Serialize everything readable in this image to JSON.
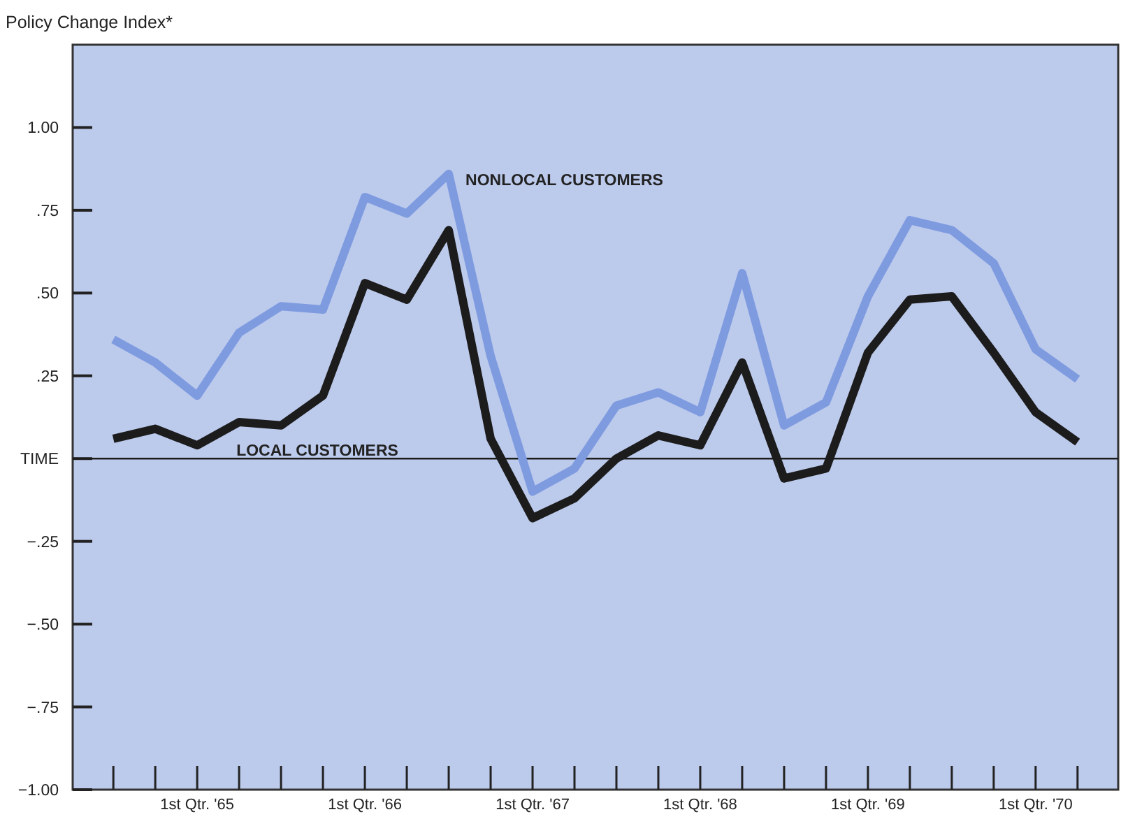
{
  "chart_data": {
    "type": "line",
    "ylabel": "Policy Change Index*",
    "categories": [
      null,
      null,
      "1st Qtr. '65",
      null,
      null,
      null,
      "1st Qtr. '66",
      null,
      null,
      null,
      "1st Qtr. '67",
      null,
      null,
      null,
      "1st Qtr. '68",
      null,
      null,
      null,
      "1st Qtr. '69",
      null,
      null,
      null,
      "1st Qtr. '70",
      null
    ],
    "series": [
      {
        "name": "NONLOCAL CUSTOMERS",
        "color": "#7f9be0",
        "values": [
          0.36,
          0.29,
          0.19,
          0.38,
          0.46,
          0.45,
          0.79,
          0.74,
          0.86,
          0.31,
          -0.1,
          -0.03,
          0.16,
          0.2,
          0.14,
          0.56,
          0.1,
          0.17,
          0.49,
          0.72,
          0.69,
          0.59,
          0.33,
          0.24
        ]
      },
      {
        "name": "LOCAL CUSTOMERS",
        "color": "#1c1c1c",
        "values": [
          0.06,
          0.09,
          0.04,
          0.11,
          0.1,
          0.19,
          0.53,
          0.48,
          0.69,
          0.06,
          -0.18,
          -0.12,
          0.0,
          0.07,
          0.04,
          0.29,
          -0.06,
          -0.03,
          0.32,
          0.48,
          0.49,
          0.32,
          0.14,
          0.05
        ]
      }
    ],
    "ylim": [
      -1.0,
      1.25
    ],
    "yticks": [
      {
        "value": -1.0,
        "label": "−1.00"
      },
      {
        "value": -0.75,
        "label": "−.75"
      },
      {
        "value": -0.5,
        "label": "−.50"
      },
      {
        "value": -0.25,
        "label": "−.25"
      },
      {
        "value": 0,
        "label": "TIME"
      },
      {
        "value": 0.25,
        "label": ".25"
      },
      {
        "value": 0.5,
        "label": ".50"
      },
      {
        "value": 0.75,
        "label": ".75"
      },
      {
        "value": 1.0,
        "label": "1.00"
      }
    ],
    "ref_lines": [
      {
        "axis": "y",
        "value": 0,
        "color": "#1c1c1c"
      }
    ],
    "grid": false,
    "legend": false,
    "marker": "none",
    "line_style": "solid"
  }
}
